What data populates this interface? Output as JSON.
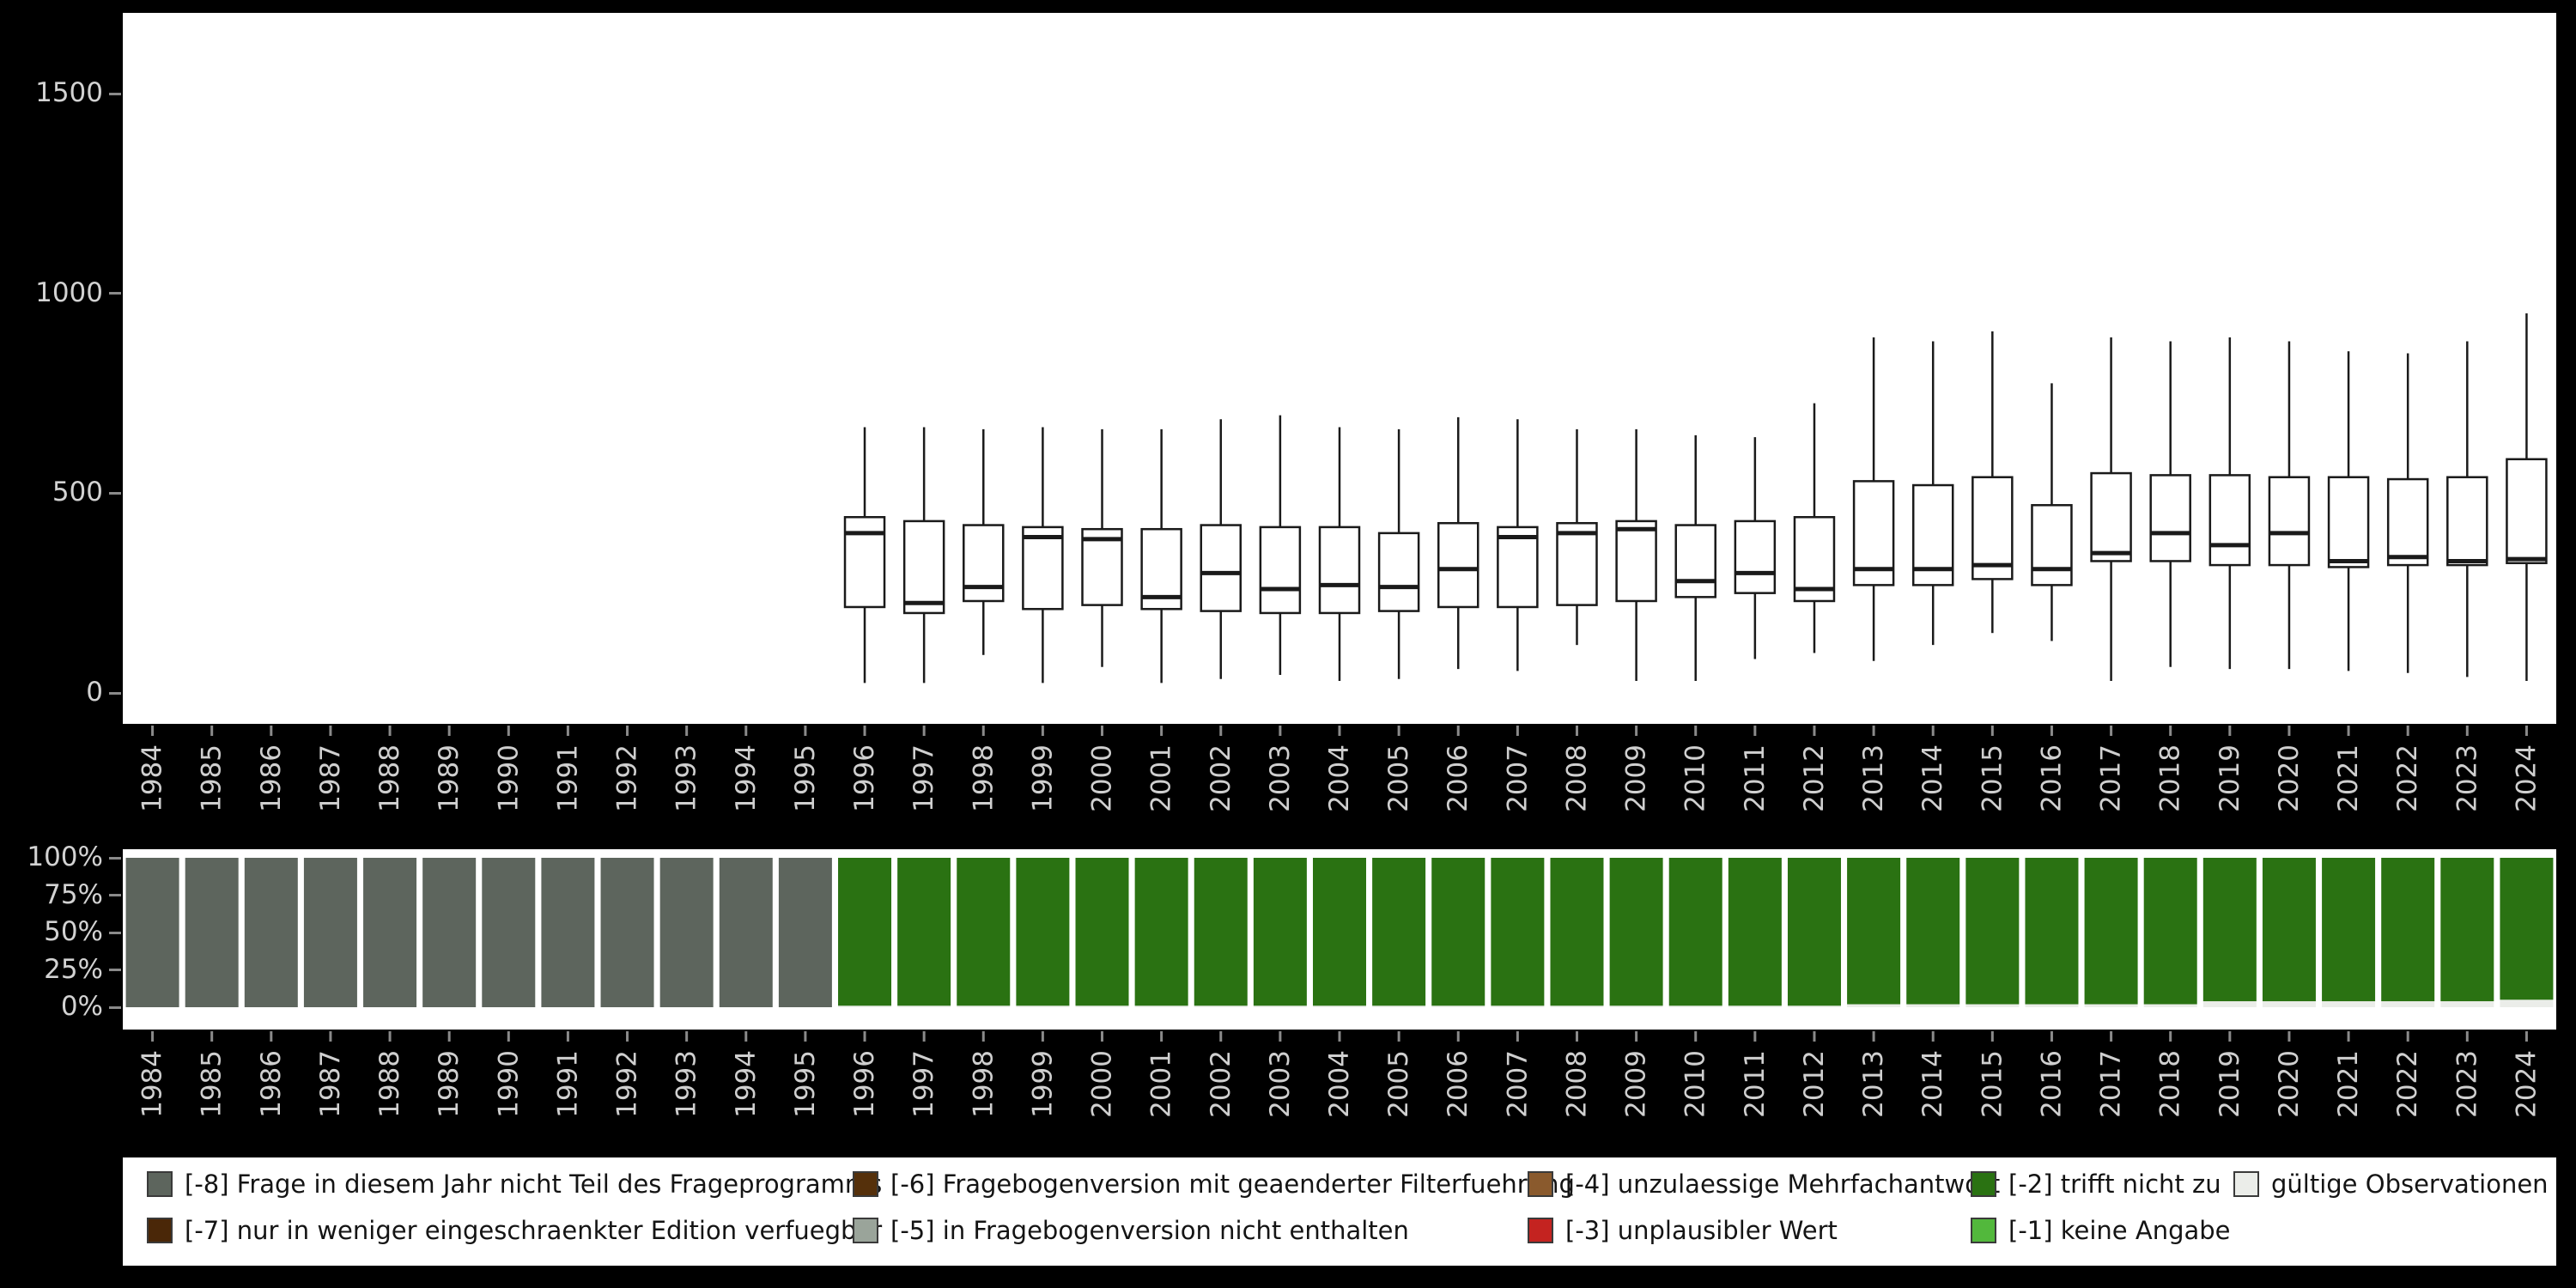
{
  "colors": {
    "background": "#000000",
    "plot_background": "#ffffff",
    "axis_text": "#cfcfcf",
    "tick": "#8a8a8a",
    "box_stroke": "#1a1a1a",
    "box_fill": "#ffffff"
  },
  "chart_data": [
    {
      "type": "boxplot",
      "name": "values-by-year-boxplot",
      "categories": [
        "1984",
        "1985",
        "1986",
        "1987",
        "1988",
        "1989",
        "1990",
        "1991",
        "1992",
        "1993",
        "1994",
        "1995",
        "1996",
        "1997",
        "1998",
        "1999",
        "2000",
        "2001",
        "2002",
        "2003",
        "2004",
        "2005",
        "2006",
        "2007",
        "2008",
        "2009",
        "2010",
        "2011",
        "2012",
        "2013",
        "2014",
        "2015",
        "2016",
        "2017",
        "2018",
        "2019",
        "2020",
        "2021",
        "2022",
        "2023",
        "2024"
      ],
      "ylim": [
        0,
        1500
      ],
      "yticks": [
        0,
        500,
        1000,
        1500
      ],
      "grid": false,
      "boxes": [
        {
          "year": "1996",
          "lo": 25,
          "q1": 215,
          "med": 400,
          "q3": 440,
          "hi": 665
        },
        {
          "year": "1997",
          "lo": 25,
          "q1": 200,
          "med": 225,
          "q3": 430,
          "hi": 665
        },
        {
          "year": "1998",
          "lo": 95,
          "q1": 230,
          "med": 265,
          "q3": 420,
          "hi": 660
        },
        {
          "year": "1999",
          "lo": 25,
          "q1": 210,
          "med": 390,
          "q3": 415,
          "hi": 665
        },
        {
          "year": "2000",
          "lo": 65,
          "q1": 220,
          "med": 385,
          "q3": 410,
          "hi": 660
        },
        {
          "year": "2001",
          "lo": 25,
          "q1": 210,
          "med": 240,
          "q3": 410,
          "hi": 660
        },
        {
          "year": "2002",
          "lo": 35,
          "q1": 205,
          "med": 300,
          "q3": 420,
          "hi": 685
        },
        {
          "year": "2003",
          "lo": 45,
          "q1": 200,
          "med": 260,
          "q3": 415,
          "hi": 695
        },
        {
          "year": "2004",
          "lo": 30,
          "q1": 200,
          "med": 270,
          "q3": 415,
          "hi": 665
        },
        {
          "year": "2005",
          "lo": 35,
          "q1": 205,
          "med": 265,
          "q3": 400,
          "hi": 660
        },
        {
          "year": "2006",
          "lo": 60,
          "q1": 215,
          "med": 310,
          "q3": 425,
          "hi": 690
        },
        {
          "year": "2007",
          "lo": 55,
          "q1": 215,
          "med": 390,
          "q3": 415,
          "hi": 685
        },
        {
          "year": "2008",
          "lo": 120,
          "q1": 220,
          "med": 400,
          "q3": 425,
          "hi": 660
        },
        {
          "year": "2009",
          "lo": 30,
          "q1": 230,
          "med": 410,
          "q3": 430,
          "hi": 660
        },
        {
          "year": "2010",
          "lo": 30,
          "q1": 240,
          "med": 280,
          "q3": 420,
          "hi": 645
        },
        {
          "year": "2011",
          "lo": 85,
          "q1": 250,
          "med": 300,
          "q3": 430,
          "hi": 640
        },
        {
          "year": "2012",
          "lo": 100,
          "q1": 230,
          "med": 260,
          "q3": 440,
          "hi": 725
        },
        {
          "year": "2013",
          "lo": 80,
          "q1": 270,
          "med": 310,
          "q3": 530,
          "hi": 890
        },
        {
          "year": "2014",
          "lo": 120,
          "q1": 270,
          "med": 310,
          "q3": 520,
          "hi": 880
        },
        {
          "year": "2015",
          "lo": 150,
          "q1": 285,
          "med": 320,
          "q3": 540,
          "hi": 905
        },
        {
          "year": "2016",
          "lo": 130,
          "q1": 270,
          "med": 310,
          "q3": 470,
          "hi": 775
        },
        {
          "year": "2017",
          "lo": 30,
          "q1": 330,
          "med": 350,
          "q3": 550,
          "hi": 890
        },
        {
          "year": "2018",
          "lo": 65,
          "q1": 330,
          "med": 400,
          "q3": 545,
          "hi": 880
        },
        {
          "year": "2019",
          "lo": 60,
          "q1": 320,
          "med": 370,
          "q3": 545,
          "hi": 890
        },
        {
          "year": "2020",
          "lo": 60,
          "q1": 320,
          "med": 400,
          "q3": 540,
          "hi": 880
        },
        {
          "year": "2021",
          "lo": 55,
          "q1": 315,
          "med": 330,
          "q3": 540,
          "hi": 855
        },
        {
          "year": "2022",
          "lo": 50,
          "q1": 320,
          "med": 340,
          "q3": 535,
          "hi": 850
        },
        {
          "year": "2023",
          "lo": 40,
          "q1": 320,
          "med": 330,
          "q3": 540,
          "hi": 880
        },
        {
          "year": "2024",
          "lo": 30,
          "q1": 325,
          "med": 335,
          "q3": 585,
          "hi": 950
        }
      ]
    },
    {
      "type": "bar",
      "stacked": true,
      "name": "missing-codes-share-by-year",
      "categories": [
        "1984",
        "1985",
        "1986",
        "1987",
        "1988",
        "1989",
        "1990",
        "1991",
        "1992",
        "1993",
        "1994",
        "1995",
        "1996",
        "1997",
        "1998",
        "1999",
        "2000",
        "2001",
        "2002",
        "2003",
        "2004",
        "2005",
        "2006",
        "2007",
        "2008",
        "2009",
        "2010",
        "2011",
        "2012",
        "2013",
        "2014",
        "2015",
        "2016",
        "2017",
        "2018",
        "2019",
        "2020",
        "2021",
        "2022",
        "2023",
        "2024"
      ],
      "yticks_pct": [
        0,
        25,
        50,
        75,
        100
      ],
      "bars": [
        {
          "year": "1984",
          "segments": [
            {
              "key": "-8",
              "pct": 100
            }
          ]
        },
        {
          "year": "1985",
          "segments": [
            {
              "key": "-8",
              "pct": 100
            }
          ]
        },
        {
          "year": "1986",
          "segments": [
            {
              "key": "-8",
              "pct": 100
            }
          ]
        },
        {
          "year": "1987",
          "segments": [
            {
              "key": "-8",
              "pct": 100
            }
          ]
        },
        {
          "year": "1988",
          "segments": [
            {
              "key": "-8",
              "pct": 100
            }
          ]
        },
        {
          "year": "1989",
          "segments": [
            {
              "key": "-8",
              "pct": 100
            }
          ]
        },
        {
          "year": "1990",
          "segments": [
            {
              "key": "-8",
              "pct": 100
            }
          ]
        },
        {
          "year": "1991",
          "segments": [
            {
              "key": "-8",
              "pct": 100
            }
          ]
        },
        {
          "year": "1992",
          "segments": [
            {
              "key": "-8",
              "pct": 100
            }
          ]
        },
        {
          "year": "1993",
          "segments": [
            {
              "key": "-8",
              "pct": 100
            }
          ]
        },
        {
          "year": "1994",
          "segments": [
            {
              "key": "-8",
              "pct": 100
            }
          ]
        },
        {
          "year": "1995",
          "segments": [
            {
              "key": "-8",
              "pct": 100
            }
          ]
        },
        {
          "year": "1996",
          "segments": [
            {
              "key": "valid",
              "pct": 1
            },
            {
              "key": "-2",
              "pct": 99
            }
          ]
        },
        {
          "year": "1997",
          "segments": [
            {
              "key": "valid",
              "pct": 1
            },
            {
              "key": "-2",
              "pct": 99
            }
          ]
        },
        {
          "year": "1998",
          "segments": [
            {
              "key": "valid",
              "pct": 1
            },
            {
              "key": "-2",
              "pct": 99
            }
          ]
        },
        {
          "year": "1999",
          "segments": [
            {
              "key": "valid",
              "pct": 1
            },
            {
              "key": "-2",
              "pct": 99
            }
          ]
        },
        {
          "year": "2000",
          "segments": [
            {
              "key": "valid",
              "pct": 1
            },
            {
              "key": "-2",
              "pct": 99
            }
          ]
        },
        {
          "year": "2001",
          "segments": [
            {
              "key": "valid",
              "pct": 1
            },
            {
              "key": "-2",
              "pct": 99
            }
          ]
        },
        {
          "year": "2002",
          "segments": [
            {
              "key": "valid",
              "pct": 1
            },
            {
              "key": "-2",
              "pct": 99
            }
          ]
        },
        {
          "year": "2003",
          "segments": [
            {
              "key": "valid",
              "pct": 1
            },
            {
              "key": "-2",
              "pct": 99
            }
          ]
        },
        {
          "year": "2004",
          "segments": [
            {
              "key": "valid",
              "pct": 1
            },
            {
              "key": "-2",
              "pct": 99
            }
          ]
        },
        {
          "year": "2005",
          "segments": [
            {
              "key": "valid",
              "pct": 1
            },
            {
              "key": "-2",
              "pct": 99
            }
          ]
        },
        {
          "year": "2006",
          "segments": [
            {
              "key": "valid",
              "pct": 1
            },
            {
              "key": "-2",
              "pct": 99
            }
          ]
        },
        {
          "year": "2007",
          "segments": [
            {
              "key": "valid",
              "pct": 1
            },
            {
              "key": "-2",
              "pct": 99
            }
          ]
        },
        {
          "year": "2008",
          "segments": [
            {
              "key": "valid",
              "pct": 1
            },
            {
              "key": "-2",
              "pct": 99
            }
          ]
        },
        {
          "year": "2009",
          "segments": [
            {
              "key": "valid",
              "pct": 1
            },
            {
              "key": "-2",
              "pct": 99
            }
          ]
        },
        {
          "year": "2010",
          "segments": [
            {
              "key": "valid",
              "pct": 1
            },
            {
              "key": "-2",
              "pct": 99
            }
          ]
        },
        {
          "year": "2011",
          "segments": [
            {
              "key": "valid",
              "pct": 1
            },
            {
              "key": "-2",
              "pct": 99
            }
          ]
        },
        {
          "year": "2012",
          "segments": [
            {
              "key": "valid",
              "pct": 1
            },
            {
              "key": "-2",
              "pct": 99
            }
          ]
        },
        {
          "year": "2013",
          "segments": [
            {
              "key": "valid",
              "pct": 2
            },
            {
              "key": "-2",
              "pct": 98
            }
          ]
        },
        {
          "year": "2014",
          "segments": [
            {
              "key": "valid",
              "pct": 2
            },
            {
              "key": "-2",
              "pct": 98
            }
          ]
        },
        {
          "year": "2015",
          "segments": [
            {
              "key": "valid",
              "pct": 2
            },
            {
              "key": "-2",
              "pct": 98
            }
          ]
        },
        {
          "year": "2016",
          "segments": [
            {
              "key": "valid",
              "pct": 2
            },
            {
              "key": "-2",
              "pct": 98
            }
          ]
        },
        {
          "year": "2017",
          "segments": [
            {
              "key": "valid",
              "pct": 2
            },
            {
              "key": "-2",
              "pct": 98
            }
          ]
        },
        {
          "year": "2018",
          "segments": [
            {
              "key": "valid",
              "pct": 2
            },
            {
              "key": "-2",
              "pct": 98
            }
          ]
        },
        {
          "year": "2019",
          "segments": [
            {
              "key": "valid",
              "pct": 4
            },
            {
              "key": "-2",
              "pct": 96
            }
          ]
        },
        {
          "year": "2020",
          "segments": [
            {
              "key": "valid",
              "pct": 4
            },
            {
              "key": "-2",
              "pct": 96
            }
          ]
        },
        {
          "year": "2021",
          "segments": [
            {
              "key": "valid",
              "pct": 4
            },
            {
              "key": "-2",
              "pct": 96
            }
          ]
        },
        {
          "year": "2022",
          "segments": [
            {
              "key": "valid",
              "pct": 4
            },
            {
              "key": "-2",
              "pct": 96
            }
          ]
        },
        {
          "year": "2023",
          "segments": [
            {
              "key": "valid",
              "pct": 4
            },
            {
              "key": "-2",
              "pct": 96
            }
          ]
        },
        {
          "year": "2024",
          "segments": [
            {
              "key": "valid",
              "pct": 5
            },
            {
              "key": "-2",
              "pct": 95
            }
          ]
        }
      ]
    }
  ],
  "legend": {
    "items": [
      {
        "key": "-8",
        "label": "[-8] Frage in diesem Jahr nicht Teil des Frageprogramms",
        "color": "#5d655d",
        "row": 0,
        "col": 0
      },
      {
        "key": "-6",
        "label": "[-6] Fragebogenversion mit geaenderter Filterfuehrung",
        "color": "#55300b",
        "row": 0,
        "col": 1
      },
      {
        "key": "-4",
        "label": "[-4] unzulaessige Mehrfachantwort",
        "color": "#8a5a2d",
        "row": 0,
        "col": 2
      },
      {
        "key": "-2",
        "label": "[-2] trifft nicht zu",
        "color": "#2a7212",
        "row": 0,
        "col": 3
      },
      {
        "key": "valid",
        "label": "gültige Observationen",
        "color": "#ebede9",
        "row": 0,
        "col": 4
      },
      {
        "key": "-7",
        "label": "[-7] nur in weniger eingeschraenkter Edition verfuegbar",
        "color": "#4a2708",
        "row": 1,
        "col": 0
      },
      {
        "key": "-5",
        "label": "[-5] in Fragebogenversion nicht enthalten",
        "color": "#9aa49a",
        "row": 1,
        "col": 1
      },
      {
        "key": "-3",
        "label": "[-3] unplausibler Wert",
        "color": "#c42320",
        "row": 1,
        "col": 2
      },
      {
        "key": "-1",
        "label": "[-1] keine Angabe",
        "color": "#52b83c",
        "row": 1,
        "col": 3
      }
    ]
  }
}
